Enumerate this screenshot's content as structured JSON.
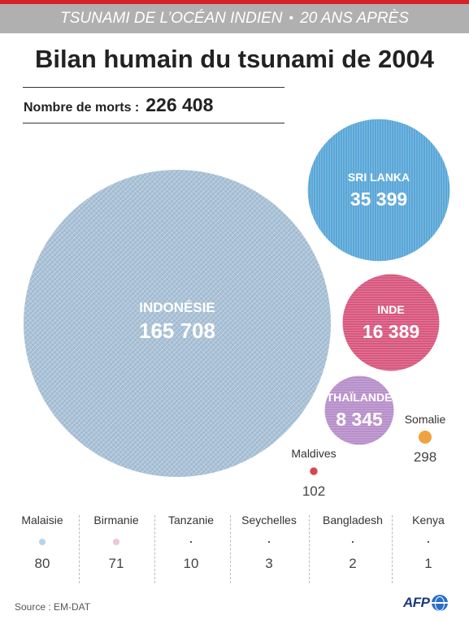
{
  "header": {
    "left": "TSUNAMI DE L’OCÉAN INDIEN",
    "separator": "•",
    "right": "20 ANS APRÈS"
  },
  "title": "Bilan humain du tsunami de 2004",
  "total": {
    "label": "Nombre de morts :",
    "value": "226 408"
  },
  "colors": {
    "accent_line": "#d6222a",
    "indonesia": "#a9c1d6",
    "sri_lanka": "#5aa7d8",
    "inde": "#d8577f",
    "thailande": "#b78fca",
    "somalie": "#efa23f",
    "maldives": "#d94452",
    "malaisie": "#b5d3ee",
    "birmanie": "#eec6d6",
    "small": "#222222"
  },
  "chart_data": {
    "type": "bubble",
    "title": "Bilan humain du tsunami de 2004",
    "unit": "morts",
    "bubbles": [
      {
        "name": "INDONÉSIE",
        "value": 165708,
        "label": "165 708",
        "color_key": "indonesia",
        "label_inside": true
      },
      {
        "name": "SRI LANKA",
        "value": 35399,
        "label": "35 399",
        "color_key": "sri_lanka",
        "label_inside": true
      },
      {
        "name": "INDE",
        "value": 16389,
        "label": "16 389",
        "color_key": "inde",
        "label_inside": true
      },
      {
        "name": "THAÏLANDE",
        "value": 8345,
        "label": "8 345",
        "color_key": "thailande",
        "label_inside": true
      },
      {
        "name": "Somalie",
        "value": 298,
        "label": "298",
        "color_key": "somalie",
        "label_inside": false
      },
      {
        "name": "Maldives",
        "value": 102,
        "label": "102",
        "color_key": "maldives",
        "label_inside": false
      }
    ],
    "small_countries": [
      {
        "name": "Malaisie",
        "value": 80,
        "label": "80",
        "color_key": "malaisie"
      },
      {
        "name": "Birmanie",
        "value": 71,
        "label": "71",
        "color_key": "birmanie"
      },
      {
        "name": "Tanzanie",
        "value": 10,
        "label": "10",
        "color_key": "small"
      },
      {
        "name": "Seychelles",
        "value": 3,
        "label": "3",
        "color_key": "small"
      },
      {
        "name": "Bangladesh",
        "value": 2,
        "label": "2",
        "color_key": "small"
      },
      {
        "name": "Kenya",
        "value": 1,
        "label": "1",
        "color_key": "small"
      }
    ]
  },
  "footer": {
    "source": "Source : EM-DAT",
    "logo": "AFP"
  }
}
